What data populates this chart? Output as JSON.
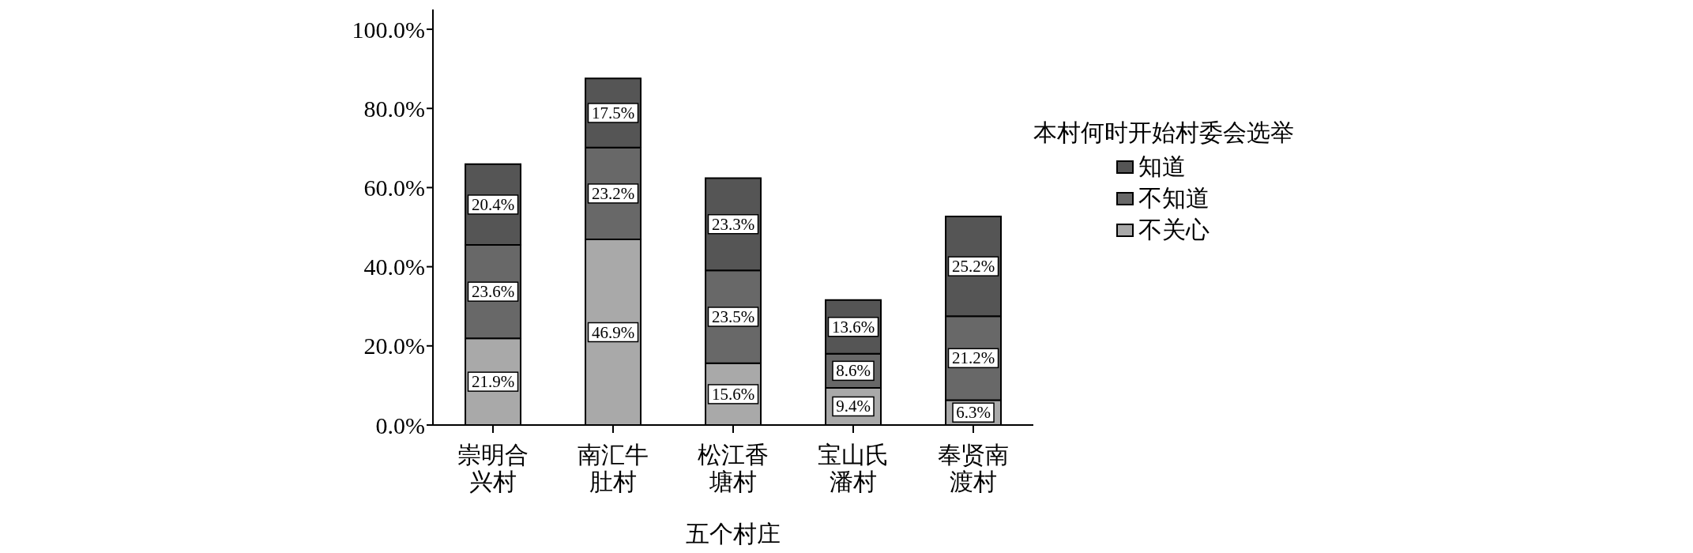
{
  "chart_data": {
    "type": "bar",
    "stacked": true,
    "categories": [
      "崇明合兴村",
      "南汇牛肚村",
      "松江香塘村",
      "宝山氏潘村",
      "奉贤南渡村"
    ],
    "xlabel": "五个村庄",
    "legend_title": "本村何时开始村委会选举",
    "legend": "right",
    "ylim": [
      0,
      105
    ],
    "yticks": [
      {
        "value": 0,
        "label": "0.0%"
      },
      {
        "value": 20,
        "label": "20.0%"
      },
      {
        "value": 40,
        "label": "40.0%"
      },
      {
        "value": 60,
        "label": "60.0%"
      },
      {
        "value": 80,
        "label": "80.0%"
      },
      {
        "value": 100,
        "label": "100.0%"
      }
    ],
    "series": [
      {
        "name": "不关心",
        "color": "#a9a9a9",
        "values": [
          21.9,
          46.9,
          15.6,
          9.4,
          6.3
        ],
        "value_labels": [
          "21.9%",
          "46.9%",
          "15.6%",
          "9.4%",
          "6.3%"
        ]
      },
      {
        "name": "不知道",
        "color": "#686868",
        "values": [
          23.6,
          23.2,
          23.5,
          8.6,
          21.2
        ],
        "value_labels": [
          "23.6%",
          "23.2%",
          "23.5%",
          "8.6%",
          "21.2%"
        ]
      },
      {
        "name": "知道",
        "color": "#555555",
        "values": [
          20.4,
          17.5,
          23.3,
          13.6,
          25.2
        ],
        "value_labels": [
          "20.4%",
          "17.5%",
          "23.3%",
          "13.6%",
          "25.2%"
        ]
      }
    ]
  }
}
